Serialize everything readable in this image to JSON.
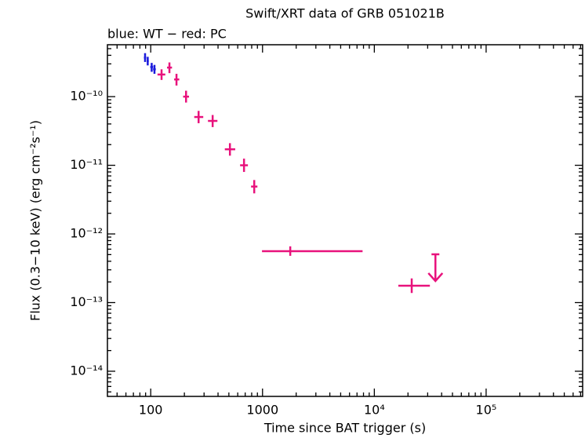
{
  "chart_data": {
    "type": "scatter",
    "title": "Swift/XRT data of GRB 051021B",
    "subtitle": "blue: WT − red: PC",
    "x_label": "Time since BAT trigger (s)",
    "y_label": "Flux (0.3−10 keV) (erg cm⁻²s⁻¹)",
    "xscale": "log",
    "yscale": "log",
    "xlim": [
      41,
      730000
    ],
    "ylim": [
      4.3e-15,
      5.7e-10
    ],
    "xticks": [
      100,
      1000,
      {
        "value": 10000,
        "label": "10⁴"
      },
      {
        "value": 100000,
        "label": "10⁵"
      }
    ],
    "yticks": [
      {
        "value": 1e-14,
        "label": "10⁻¹⁴"
      },
      {
        "value": 1e-13,
        "label": "10⁻¹³"
      },
      {
        "value": 1e-12,
        "label": "10⁻¹²"
      },
      {
        "value": 1e-11,
        "label": "10⁻¹¹"
      },
      {
        "value": 1e-10,
        "label": "10⁻¹⁰"
      }
    ],
    "series": [
      {
        "name": "WT",
        "color": "#1a1adc",
        "x": [
          89,
          94,
          102,
          108
        ],
        "x_lo": [
          87,
          92,
          99,
          105
        ],
        "x_hi": [
          91,
          96,
          105,
          111
        ],
        "values": [
          3.7e-10,
          3.3e-10,
          2.7e-10,
          2.5e-10
        ],
        "y_lo": [
          3.2e-10,
          2.85e-10,
          2.3e-10,
          2.15e-10
        ],
        "y_hi": [
          4.3e-10,
          3.8e-10,
          3.1e-10,
          2.9e-10
        ]
      },
      {
        "name": "PC",
        "color": "#e8127c",
        "x": [
          125,
          147,
          170,
          207,
          268,
          358,
          511,
          683,
          843,
          1770,
          21600
        ],
        "x_lo": [
          115,
          140,
          162,
          195,
          245,
          325,
          460,
          630,
          790,
          989,
          16400
        ],
        "x_hi": [
          135,
          155,
          180,
          220,
          295,
          395,
          570,
          740,
          900,
          7850,
          31400
        ],
        "values": [
          2.1e-10,
          2.65e-10,
          1.78e-10,
          1e-10,
          5.05e-11,
          4.43e-11,
          1.71e-11,
          1e-11,
          4.9e-12,
          5.6e-13,
          1.76e-13
        ],
        "y_lo": [
          1.75e-10,
          2.2e-10,
          1.45e-10,
          8.2e-11,
          4.1e-11,
          3.6e-11,
          1.38e-11,
          8e-12,
          3.9e-12,
          4.8e-13,
          1.38e-13
        ],
        "y_hi": [
          2.5e-10,
          3.15e-10,
          2.15e-10,
          1.22e-10,
          6.2e-11,
          5.4e-11,
          2.1e-11,
          1.25e-11,
          6.1e-12,
          6.6e-13,
          2.25e-13
        ],
        "upper_limit": {
          "x": 35200,
          "value": 5.05e-13
        }
      }
    ]
  }
}
